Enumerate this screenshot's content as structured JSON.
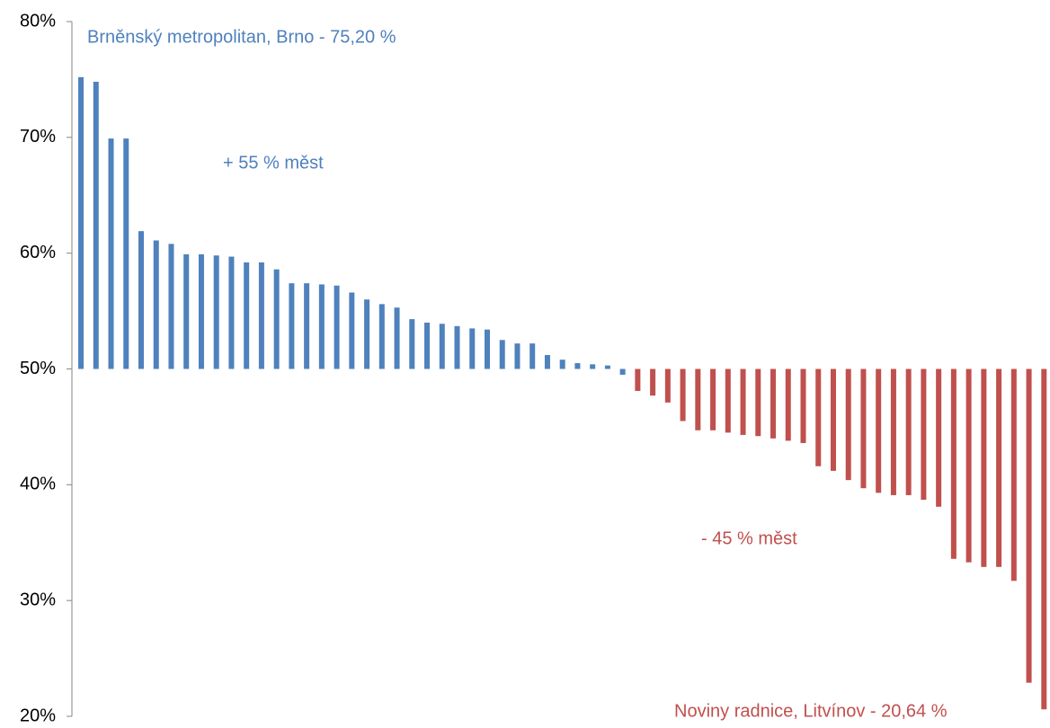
{
  "chart_data": {
    "type": "bar",
    "categories": [
      null,
      null,
      null,
      null,
      null,
      null,
      null,
      null,
      null,
      null,
      null,
      null,
      null,
      null,
      null,
      null,
      null,
      null,
      null,
      null,
      null,
      null,
      null,
      null,
      null,
      null,
      null,
      null,
      null,
      null,
      null,
      null,
      null,
      null,
      null,
      null,
      null,
      null,
      null,
      null,
      null,
      null,
      null,
      null,
      null,
      null,
      null,
      null,
      null,
      null,
      null,
      null,
      null,
      null,
      null,
      null,
      null,
      null,
      null,
      null,
      null,
      null,
      null,
      null,
      null
    ],
    "series": [
      {
        "color": "#4f81bd",
        "values": [
          75.2,
          74.8,
          69.9,
          69.9,
          61.9,
          61.1,
          60.8,
          59.9,
          59.9,
          59.8,
          59.7,
          59.2,
          59.2,
          58.6,
          57.4,
          57.4,
          57.3,
          57.2,
          56.6,
          56.0,
          55.6,
          55.3,
          54.3,
          54.0,
          53.9,
          53.7,
          53.5,
          53.4,
          52.5,
          52.2,
          52.2,
          51.2,
          50.8,
          50.5,
          50.4,
          50.3,
          49.5,
          null,
          null,
          null,
          null,
          null,
          null,
          null,
          null,
          null,
          null,
          null,
          null,
          null,
          null,
          null,
          null,
          null,
          null,
          null,
          null,
          null,
          null,
          null,
          null,
          null,
          null,
          null,
          null
        ]
      },
      {
        "color": "#c0504d",
        "values": [
          null,
          null,
          null,
          null,
          null,
          null,
          null,
          null,
          null,
          null,
          null,
          null,
          null,
          null,
          null,
          null,
          null,
          null,
          null,
          null,
          null,
          null,
          null,
          null,
          null,
          null,
          null,
          null,
          null,
          null,
          null,
          null,
          null,
          null,
          null,
          null,
          null,
          48.1,
          47.7,
          47.1,
          45.5,
          44.7,
          44.7,
          44.5,
          44.3,
          44.2,
          44.0,
          43.8,
          43.6,
          41.6,
          41.2,
          40.4,
          39.7,
          39.3,
          39.1,
          39.1,
          38.7,
          38.1,
          33.6,
          33.3,
          32.9,
          32.9,
          31.7,
          22.9,
          20.6
        ]
      }
    ],
    "baseline": 50,
    "ylim": [
      20,
      80
    ],
    "yticks": [
      {
        "value": 20,
        "label": "20%"
      },
      {
        "value": 30,
        "label": "30%"
      },
      {
        "value": 40,
        "label": "40%"
      },
      {
        "value": 50,
        "label": "50%"
      },
      {
        "value": 60,
        "label": "60%"
      },
      {
        "value": 70,
        "label": "70%"
      },
      {
        "value": 80,
        "label": "80%"
      }
    ],
    "annotations": [
      {
        "text": "Brněnský metropolitan, Brno - 75,20 %",
        "color": "#4f81bd"
      },
      {
        "text": "+ 55 % měst",
        "color": "#4f81bd"
      },
      {
        "text": "- 45 % měst",
        "color": "#c0504d"
      },
      {
        "text": "Noviny radnice, Litvínov - 20,64 %",
        "color": "#c0504d"
      }
    ]
  }
}
